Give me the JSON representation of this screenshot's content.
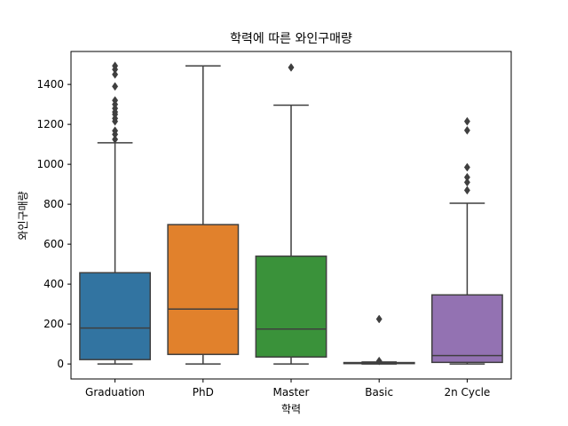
{
  "chart_data": {
    "type": "box",
    "title": "학력에 따른 와인구매량",
    "xlabel": "학력",
    "ylabel": "와인구매량",
    "ylim": [
      -75,
      1565
    ],
    "yticks": [
      0,
      200,
      400,
      600,
      800,
      1000,
      1200,
      1400
    ],
    "categories": [
      "Graduation",
      "PhD",
      "Master",
      "Basic",
      "2n Cycle"
    ],
    "colors": [
      "#3274a1",
      "#e1812c",
      "#3a923a",
      "#c03d3e",
      "#9372b2"
    ],
    "boxes": [
      {
        "category": "Graduation",
        "whisker_low": 0,
        "q1": 22,
        "median": 180,
        "q3": 457,
        "whisker_high": 1108,
        "outliers": [
          1125,
          1150,
          1168,
          1215,
          1230,
          1250,
          1262,
          1280,
          1300,
          1320,
          1390,
          1450,
          1475,
          1493
        ]
      },
      {
        "category": "PhD",
        "whisker_low": 0,
        "q1": 48,
        "median": 275,
        "q3": 698,
        "whisker_high": 1493,
        "outliers": []
      },
      {
        "category": "Master",
        "whisker_low": 0,
        "q1": 35,
        "median": 175,
        "q3": 540,
        "whisker_high": 1296,
        "outliers": [
          1485
        ]
      },
      {
        "category": "Basic",
        "whisker_low": 0,
        "q1": 2,
        "median": 5,
        "q3": 7,
        "whisker_high": 10,
        "outliers": [
          15,
          225
        ]
      },
      {
        "category": "2n Cycle",
        "whisker_low": 0,
        "q1": 8,
        "median": 42,
        "q3": 346,
        "whisker_high": 805,
        "outliers": [
          870,
          910,
          935,
          985,
          1170,
          1215
        ]
      }
    ]
  }
}
